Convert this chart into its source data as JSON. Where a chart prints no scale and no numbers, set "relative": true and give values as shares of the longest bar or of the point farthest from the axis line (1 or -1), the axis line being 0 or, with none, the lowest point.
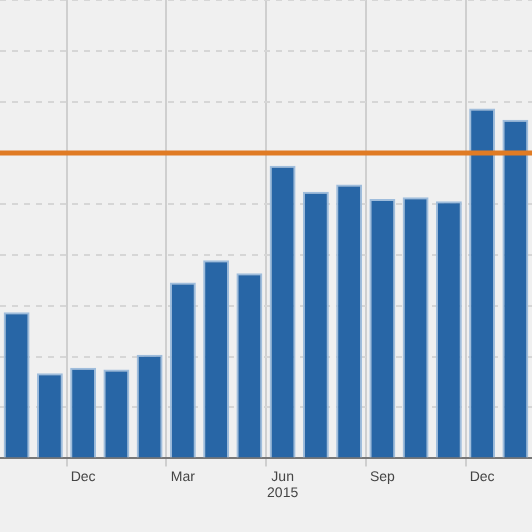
{
  "chart_data": {
    "type": "bar",
    "relative": true,
    "color": "#2866a6",
    "categories": [
      null,
      null,
      "Dec",
      null,
      null,
      "Mar",
      null,
      null,
      "Jun 2015",
      null,
      null,
      "Sep",
      null,
      null,
      "Dec",
      null
    ],
    "values": [
      0.418,
      0.243,
      0.259,
      0.254,
      0.296,
      0.503,
      0.566,
      0.529,
      0.836,
      0.762,
      0.783,
      0.741,
      0.746,
      0.735,
      1,
      0.968
    ],
    "ref_lines": [
      {
        "axis": "y",
        "value": 0.873,
        "color": "#e07b24"
      }
    ],
    "grid": true
  }
}
